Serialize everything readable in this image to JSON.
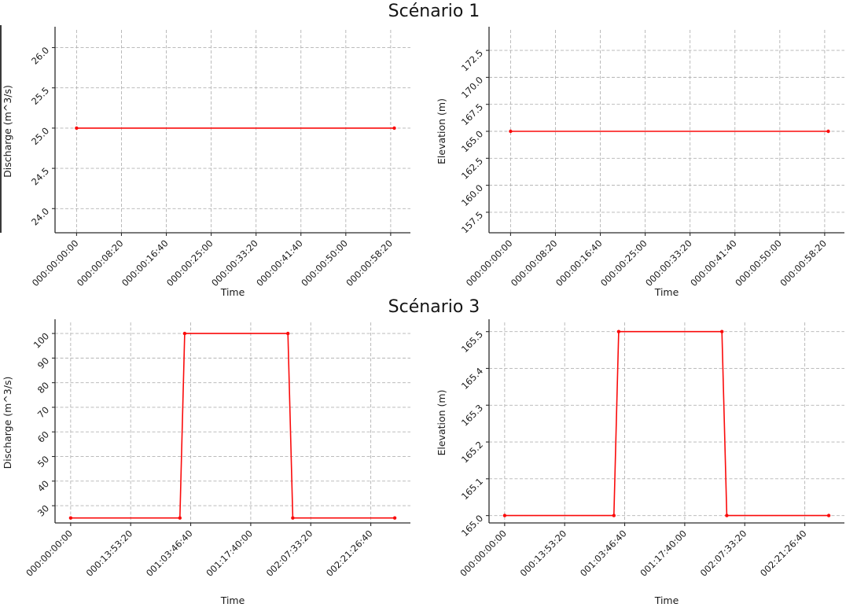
{
  "titles": [
    "Scénario 1",
    "Scénario 3"
  ],
  "colors": {
    "line": "#fa0b0b",
    "grid": "#b3b3b3",
    "spine": "#2b2b2b",
    "text": "#1a1a1a"
  },
  "chart_data": [
    {
      "type": "line",
      "scenario": "Scénario 1",
      "xlabel": "Time",
      "ylabel": "Discharge (m^3/s)",
      "x": [
        0,
        3540
      ],
      "y": [
        25.0,
        25.0
      ],
      "xlim": [
        -240,
        3720
      ],
      "ylim": [
        23.7,
        26.22
      ],
      "x_tick_values": [
        0,
        500,
        1000,
        1500,
        2000,
        2500,
        3000,
        3500
      ],
      "x_tick_labels": [
        "000:00:00:00",
        "000:00:08:20",
        "000:00:16:40",
        "000:00:25:00",
        "000:00:33:20",
        "000:00:41:40",
        "000:00:50:00",
        "000:00:58:20"
      ],
      "y_tick_values": [
        24.0,
        24.5,
        25.0,
        25.5,
        26.0
      ],
      "y_tick_labels": [
        "24.0",
        "24.5",
        "25.0",
        "25.5",
        "26.0"
      ],
      "grid": true,
      "legend": "none"
    },
    {
      "type": "line",
      "scenario": "Scénario 1",
      "xlabel": "Time",
      "ylabel": "Elevation (m)",
      "x": [
        0,
        3540
      ],
      "y": [
        165.0,
        165.0
      ],
      "xlim": [
        -240,
        3720
      ],
      "ylim": [
        155.6,
        174.4
      ],
      "x_tick_values": [
        0,
        500,
        1000,
        1500,
        2000,
        2500,
        3000,
        3500
      ],
      "x_tick_labels": [
        "000:00:00:00",
        "000:00:08:20",
        "000:00:16:40",
        "000:00:25:00",
        "000:00:33:20",
        "000:00:41:40",
        "000:00:50:00",
        "000:00:58:20"
      ],
      "y_tick_values": [
        157.5,
        160.0,
        162.5,
        165.0,
        167.5,
        170.0,
        172.5
      ],
      "y_tick_labels": [
        "157.5",
        "160.0",
        "162.5",
        "165.0",
        "167.5",
        "170.0",
        "172.5"
      ],
      "grid": true,
      "legend": "none"
    },
    {
      "type": "line",
      "scenario": "Scénario 3",
      "xlabel": "Time",
      "ylabel": "Discharge (m^3/s)",
      "x": [
        0,
        91000,
        95000,
        181000,
        185000,
        270000
      ],
      "y": [
        25,
        25,
        100,
        100,
        25,
        25
      ],
      "xlim": [
        -13000,
        283000
      ],
      "ylim": [
        23.0,
        104.5
      ],
      "x_tick_values": [
        0,
        50000,
        100000,
        150000,
        200000,
        250000
      ],
      "x_tick_labels": [
        "000:00:00:00",
        "000:13:53:20",
        "001:03:46:40",
        "001:17:40:00",
        "002:07:33:20",
        "002:21:26:40"
      ],
      "y_tick_values": [
        30,
        40,
        50,
        60,
        70,
        80,
        90,
        100
      ],
      "y_tick_labels": [
        "30",
        "40",
        "50",
        "60",
        "70",
        "80",
        "90",
        "100"
      ],
      "grid": true,
      "legend": "none"
    },
    {
      "type": "line",
      "scenario": "Scénario 3",
      "xlabel": "Time",
      "ylabel": "Elevation (m)",
      "x": [
        0,
        91000,
        95000,
        181000,
        185000,
        270000
      ],
      "y": [
        165.0,
        165.0,
        165.5,
        165.5,
        165.0,
        165.0
      ],
      "xlim": [
        -13000,
        283000
      ],
      "ylim": [
        164.98,
        165.525
      ],
      "x_tick_values": [
        0,
        50000,
        100000,
        150000,
        200000,
        250000
      ],
      "x_tick_labels": [
        "000:00:00:00",
        "000:13:53:20",
        "001:03:46:40",
        "001:17:40:00",
        "002:07:33:20",
        "002:21:26:40"
      ],
      "y_tick_values": [
        165.0,
        165.1,
        165.2,
        165.3,
        165.4,
        165.5
      ],
      "y_tick_labels": [
        "165.0",
        "165.1",
        "165.2",
        "165.3",
        "165.4",
        "165.5"
      ],
      "grid": true,
      "legend": "none"
    }
  ]
}
